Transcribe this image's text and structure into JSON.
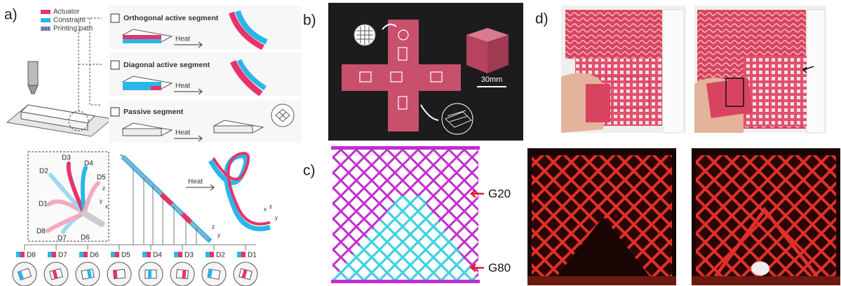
{
  "panels": {
    "a": {
      "label": "a)",
      "legend": [
        "Actuator",
        "Constraint",
        "Printing path"
      ],
      "segments": [
        {
          "name": "Orthogonal active segment",
          "action": "Heat"
        },
        {
          "name": "Diagonal active segment",
          "action": "Heat"
        },
        {
          "name": "Passive segment",
          "action": "Heat"
        }
      ],
      "heat": "Heat",
      "directions": [
        "D1",
        "D2",
        "D3",
        "D4",
        "D5",
        "D6",
        "D7",
        "D8"
      ],
      "star_axes": [
        "z",
        "y",
        "x"
      ],
      "bar_axes": [
        "z",
        "y"
      ],
      "helix_axes": [
        "x",
        "z",
        "y"
      ],
      "sequence": [
        "D8",
        "D7",
        "D6",
        "D5",
        "D4",
        "D3",
        "D2",
        "D1"
      ]
    },
    "b": {
      "label": "b)",
      "scale": "30mm"
    },
    "c": {
      "label": "c)",
      "markers": [
        "G20",
        "G80"
      ]
    },
    "d": {
      "label": "d)"
    }
  }
}
